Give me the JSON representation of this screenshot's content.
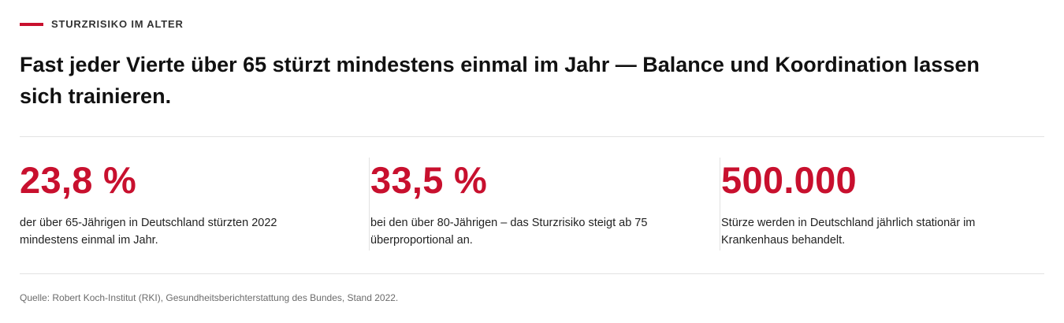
{
  "kicker": "STURZRISIKO IM ALTER",
  "headline": "Fast jeder Vierte über 65 stürzt mindestens einmal im Jahr — Balance und Koordination lassen sich trainieren.",
  "stats": [
    {
      "value": "23,8 %",
      "description": "der über 65-Jährigen in Deutschland stürzten 2022 mindestens einmal im Jahr."
    },
    {
      "value": "33,5 %",
      "description": "bei den über 80-Jährigen – das Sturzrisiko steigt ab 75 überproportional an."
    },
    {
      "value": "500.000",
      "description": "Stürze werden in Deutschland jährlich stationär im Krankenhaus behandelt."
    }
  ],
  "source": "Quelle: Robert Koch-Institut (RKI), Gesundheitsberichterstattung des Bundes, Stand 2022.",
  "colors": {
    "accent": "#c8102e",
    "text": "#111111",
    "muted": "#6b6b6b",
    "rule": "#e2e2e2"
  }
}
